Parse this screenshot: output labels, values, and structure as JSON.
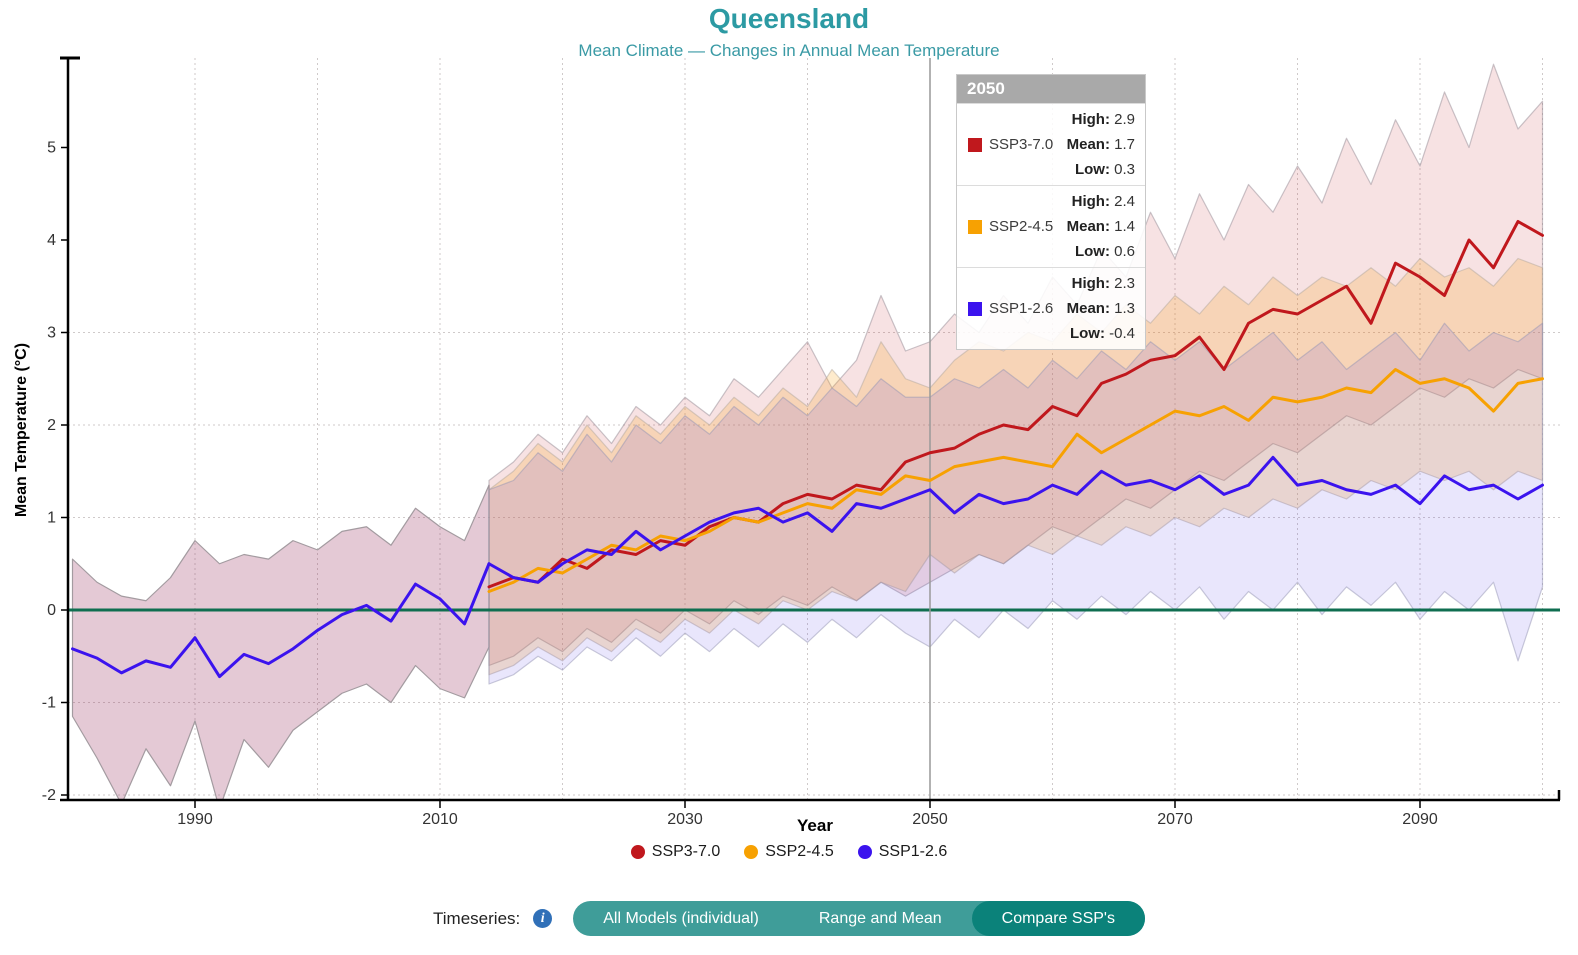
{
  "header": {
    "title": "Queensland",
    "subtitle": "Mean Climate — Changes in Annual Mean Temperature"
  },
  "colors": {
    "accent_teal": "#2c9aa3",
    "ssp3_red": "#c0181d",
    "ssp2_orange": "#f7a102",
    "ssp1_blue": "#3b13ee",
    "zero_line_green": "#0f6e50",
    "button_teal": "#3f9d99",
    "button_active_teal": "#0b827a",
    "info_icon_blue": "#3070b8",
    "tooltip_header_gray": "#a9a9a9"
  },
  "tooltip": {
    "year_label": "2050",
    "field_labels": {
      "high": "High:",
      "mean": "Mean:",
      "low": "Low:"
    },
    "rows": [
      {
        "name": "SSP3-7.0",
        "color": "#c0181d",
        "high": "2.9",
        "mean": "1.7",
        "low": "0.3"
      },
      {
        "name": "SSP2-4.5",
        "color": "#f7a102",
        "high": "2.4",
        "mean": "1.4",
        "low": "0.6"
      },
      {
        "name": "SSP1-2.6",
        "color": "#3b13ee",
        "high": "2.3",
        "mean": "1.3",
        "low": "-0.4"
      }
    ]
  },
  "legend": {
    "items": [
      {
        "label": "SSP3-7.0",
        "color": "#c0181d"
      },
      {
        "label": "SSP2-4.5",
        "color": "#f7a102"
      },
      {
        "label": "SSP1-2.6",
        "color": "#3b13ee"
      }
    ]
  },
  "controls": {
    "label": "Timeseries:",
    "info_glyph": "i",
    "buttons": [
      {
        "label": "All Models (individual)",
        "active": false
      },
      {
        "label": "Range and Mean",
        "active": false
      },
      {
        "label": "Compare SSP's",
        "active": true
      }
    ]
  },
  "chart_data": {
    "type": "line",
    "title": "Queensland",
    "subtitle": "Mean Climate — Changes in Annual Mean Temperature",
    "xlabel": "Year",
    "ylabel": "Mean Temperature (°C)",
    "xlim": [
      1980,
      2101
    ],
    "ylim": [
      -2.1,
      5.95
    ],
    "x_ticks": [
      1990,
      2010,
      2030,
      2050,
      2070,
      2090
    ],
    "x_gridlines": [
      1990,
      2000,
      2010,
      2020,
      2030,
      2040,
      2050,
      2060,
      2070,
      2080,
      2090,
      2100
    ],
    "y_ticks": [
      -2,
      -1,
      0,
      1,
      2,
      3,
      4,
      5
    ],
    "y_gridlines": [
      -2,
      -1,
      1,
      2,
      3
    ],
    "grid_on": true,
    "grid_color": "#cfcaca",
    "zero_line_value": 0,
    "zero_line_color": "#0f6e50",
    "hover_year": 2050,
    "hover_line_color": "#999999",
    "legend_position": "bottom",
    "hover_readout_2050": {
      "SSP3-7.0": {
        "high": 2.9,
        "mean": 1.7,
        "low": 0.3
      },
      "SSP2-4.5": {
        "high": 2.4,
        "mean": 1.4,
        "low": 0.6
      },
      "SSP1-2.6": {
        "high": 2.3,
        "mean": 1.3,
        "low": -0.4
      }
    },
    "historical": {
      "name": "Historical",
      "color": "#3b13ee",
      "band_fill": "rgba(158,62,103,0.28)",
      "band_stroke": "#a39ba0",
      "years": [
        1980,
        1982,
        1984,
        1986,
        1988,
        1990,
        1992,
        1994,
        1996,
        1998,
        2000,
        2002,
        2004,
        2006,
        2008,
        2010,
        2012,
        2014
      ],
      "mean": [
        -0.42,
        -0.52,
        -0.68,
        -0.55,
        -0.62,
        -0.3,
        -0.72,
        -0.48,
        -0.58,
        -0.42,
        -0.22,
        -0.05,
        0.05,
        -0.12,
        0.28,
        0.12,
        -0.15,
        0.5
      ],
      "high": [
        0.55,
        0.3,
        0.15,
        0.1,
        0.35,
        0.75,
        0.5,
        0.6,
        0.55,
        0.75,
        0.65,
        0.85,
        0.9,
        0.7,
        1.1,
        0.9,
        0.75,
        1.35
      ],
      "low": [
        -1.15,
        -1.6,
        -2.1,
        -1.5,
        -1.9,
        -1.2,
        -2.15,
        -1.4,
        -1.7,
        -1.3,
        -1.1,
        -0.9,
        -0.8,
        -1.0,
        -0.6,
        -0.85,
        -0.95,
        -0.4
      ]
    },
    "series": [
      {
        "name": "SSP3-7.0",
        "color": "#c0181d",
        "band_fill": "rgba(193,34,36,0.13)",
        "band_stroke": "rgba(150,140,150,0.5)",
        "years": [
          2014,
          2016,
          2018,
          2020,
          2022,
          2024,
          2026,
          2028,
          2030,
          2032,
          2034,
          2036,
          2038,
          2040,
          2042,
          2044,
          2046,
          2048,
          2050,
          2052,
          2054,
          2056,
          2058,
          2060,
          2062,
          2064,
          2066,
          2068,
          2070,
          2072,
          2074,
          2076,
          2078,
          2080,
          2082,
          2084,
          2086,
          2088,
          2090,
          2092,
          2094,
          2096,
          2098,
          2100
        ],
        "mean": [
          0.25,
          0.35,
          0.3,
          0.55,
          0.45,
          0.65,
          0.6,
          0.75,
          0.7,
          0.9,
          1.0,
          0.95,
          1.15,
          1.25,
          1.2,
          1.35,
          1.3,
          1.6,
          1.7,
          1.75,
          1.9,
          2.0,
          1.95,
          2.2,
          2.1,
          2.45,
          2.55,
          2.7,
          2.75,
          2.95,
          2.6,
          3.1,
          3.25,
          3.2,
          3.35,
          3.5,
          3.1,
          3.75,
          3.6,
          3.4,
          4.0,
          3.7,
          4.2,
          4.05
        ],
        "high": [
          1.4,
          1.6,
          1.9,
          1.7,
          2.1,
          1.8,
          2.2,
          2.0,
          2.3,
          2.1,
          2.5,
          2.3,
          2.6,
          2.9,
          2.4,
          2.7,
          3.4,
          2.8,
          2.9,
          3.2,
          3.0,
          3.4,
          3.1,
          3.6,
          3.3,
          3.9,
          3.6,
          4.3,
          3.8,
          4.5,
          4.0,
          4.6,
          4.3,
          4.8,
          4.4,
          5.1,
          4.6,
          5.3,
          4.8,
          5.6,
          5.0,
          5.9,
          5.2,
          5.5
        ],
        "low": [
          -0.6,
          -0.5,
          -0.3,
          -0.45,
          -0.2,
          -0.35,
          -0.1,
          -0.25,
          0.0,
          -0.15,
          0.1,
          -0.05,
          0.15,
          0.05,
          0.25,
          0.1,
          0.3,
          0.15,
          0.3,
          0.45,
          0.6,
          0.5,
          0.7,
          0.9,
          0.8,
          1.0,
          1.2,
          1.1,
          1.3,
          1.5,
          1.4,
          1.6,
          1.8,
          1.7,
          1.9,
          2.1,
          2.0,
          2.2,
          2.4,
          2.3,
          2.5,
          2.4,
          2.6,
          2.5
        ]
      },
      {
        "name": "SSP2-4.5",
        "color": "#f7a102",
        "band_fill": "rgba(250,164,26,0.22)",
        "band_stroke": "rgba(180,170,160,0.5)",
        "years": [
          2014,
          2016,
          2018,
          2020,
          2022,
          2024,
          2026,
          2028,
          2030,
          2032,
          2034,
          2036,
          2038,
          2040,
          2042,
          2044,
          2046,
          2048,
          2050,
          2052,
          2054,
          2056,
          2058,
          2060,
          2062,
          2064,
          2066,
          2068,
          2070,
          2072,
          2074,
          2076,
          2078,
          2080,
          2082,
          2084,
          2086,
          2088,
          2090,
          2092,
          2094,
          2096,
          2098,
          2100
        ],
        "mean": [
          0.2,
          0.3,
          0.45,
          0.4,
          0.55,
          0.7,
          0.65,
          0.8,
          0.75,
          0.85,
          1.0,
          0.95,
          1.05,
          1.15,
          1.1,
          1.3,
          1.25,
          1.45,
          1.4,
          1.55,
          1.6,
          1.65,
          1.6,
          1.55,
          1.9,
          1.7,
          1.85,
          2.0,
          2.15,
          2.1,
          2.2,
          2.05,
          2.3,
          2.25,
          2.3,
          2.4,
          2.35,
          2.6,
          2.45,
          2.5,
          2.4,
          2.15,
          2.45,
          2.5
        ],
        "high": [
          1.3,
          1.5,
          1.8,
          1.6,
          2.0,
          1.7,
          2.1,
          1.9,
          2.2,
          2.0,
          2.3,
          2.1,
          2.4,
          2.2,
          2.6,
          2.3,
          2.9,
          2.5,
          2.4,
          2.7,
          2.9,
          2.8,
          3.0,
          2.9,
          3.2,
          3.0,
          3.3,
          3.1,
          3.4,
          3.2,
          3.5,
          3.3,
          3.6,
          3.4,
          3.6,
          3.5,
          3.7,
          3.5,
          3.8,
          3.6,
          3.7,
          3.5,
          3.8,
          3.7
        ],
        "low": [
          -0.7,
          -0.6,
          -0.4,
          -0.55,
          -0.3,
          -0.45,
          -0.2,
          -0.35,
          -0.1,
          -0.25,
          0.0,
          -0.15,
          0.1,
          0.0,
          0.2,
          0.1,
          0.3,
          0.2,
          0.6,
          0.4,
          0.6,
          0.5,
          0.7,
          0.6,
          0.8,
          0.7,
          0.9,
          0.8,
          1.0,
          0.9,
          1.1,
          1.0,
          1.2,
          1.1,
          1.3,
          1.2,
          1.4,
          1.3,
          1.5,
          1.4,
          1.5,
          1.3,
          1.5,
          1.4
        ]
      },
      {
        "name": "SSP1-2.6",
        "color": "#3b13ee",
        "band_fill": "rgba(86,60,233,0.13)",
        "band_stroke": "rgba(150,150,180,0.5)",
        "years": [
          2014,
          2016,
          2018,
          2020,
          2022,
          2024,
          2026,
          2028,
          2030,
          2032,
          2034,
          2036,
          2038,
          2040,
          2042,
          2044,
          2046,
          2048,
          2050,
          2052,
          2054,
          2056,
          2058,
          2060,
          2062,
          2064,
          2066,
          2068,
          2070,
          2072,
          2074,
          2076,
          2078,
          2080,
          2082,
          2084,
          2086,
          2088,
          2090,
          2092,
          2094,
          2096,
          2098,
          2100
        ],
        "mean": [
          0.5,
          0.35,
          0.3,
          0.5,
          0.65,
          0.6,
          0.85,
          0.65,
          0.8,
          0.95,
          1.05,
          1.1,
          0.95,
          1.05,
          0.85,
          1.15,
          1.1,
          1.2,
          1.3,
          1.05,
          1.25,
          1.15,
          1.2,
          1.35,
          1.25,
          1.5,
          1.35,
          1.4,
          1.3,
          1.45,
          1.25,
          1.35,
          1.65,
          1.35,
          1.4,
          1.3,
          1.25,
          1.35,
          1.15,
          1.45,
          1.3,
          1.35,
          1.2,
          1.35
        ],
        "high": [
          1.3,
          1.4,
          1.7,
          1.5,
          1.9,
          1.6,
          2.0,
          1.8,
          2.1,
          1.9,
          2.2,
          2.0,
          2.3,
          2.1,
          2.4,
          2.2,
          2.5,
          2.3,
          2.3,
          2.5,
          2.4,
          2.6,
          2.4,
          2.7,
          2.5,
          2.8,
          2.6,
          2.9,
          2.7,
          2.9,
          2.6,
          2.8,
          3.0,
          2.7,
          2.9,
          2.6,
          2.8,
          3.0,
          2.7,
          3.1,
          2.8,
          3.0,
          2.9,
          3.1
        ],
        "low": [
          -0.8,
          -0.7,
          -0.5,
          -0.65,
          -0.4,
          -0.55,
          -0.3,
          -0.5,
          -0.25,
          -0.45,
          -0.2,
          -0.4,
          -0.15,
          -0.35,
          -0.1,
          -0.3,
          -0.05,
          -0.25,
          -0.4,
          -0.1,
          -0.3,
          0.0,
          -0.2,
          0.1,
          -0.1,
          0.15,
          -0.05,
          0.2,
          0.0,
          0.25,
          -0.1,
          0.2,
          0.0,
          0.3,
          -0.05,
          0.25,
          0.05,
          0.3,
          -0.1,
          0.2,
          0.0,
          0.3,
          -0.55,
          0.25
        ]
      }
    ]
  }
}
